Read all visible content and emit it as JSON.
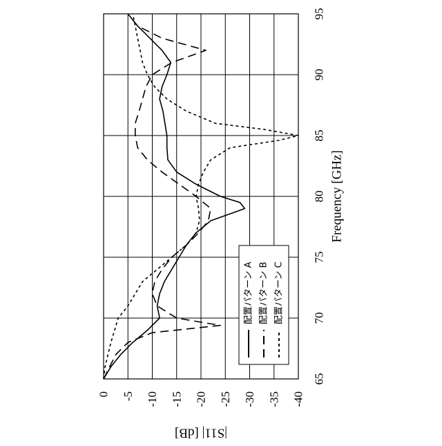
{
  "chart_data": {
    "type": "line",
    "orientation": "rotated-90-ccw",
    "xlabel": "Frequency [GHz]",
    "ylabel": "|S11| [dB]",
    "xlim": [
      65,
      95
    ],
    "ylim": [
      0,
      -40
    ],
    "x_ticks": [
      "65",
      "70",
      "75",
      "80",
      "85",
      "90",
      "95"
    ],
    "y_ticks": [
      "0",
      "-5",
      "-10",
      "-15",
      "-20",
      "-25",
      "-30",
      "-35",
      "-40"
    ],
    "grid": true,
    "legend_position": "lower-right",
    "series": [
      {
        "name": "配置パターン A",
        "style": "solid",
        "points": [
          [
            65,
            0
          ],
          [
            66,
            -1.5
          ],
          [
            67,
            -3.5
          ],
          [
            68,
            -6
          ],
          [
            69,
            -9
          ],
          [
            70,
            -11.5
          ],
          [
            71,
            -11
          ],
          [
            72,
            -11.5
          ],
          [
            73,
            -12.5
          ],
          [
            74,
            -14
          ],
          [
            75,
            -15.5
          ],
          [
            76,
            -17
          ],
          [
            77,
            -19
          ],
          [
            78,
            -22
          ],
          [
            79,
            -29
          ],
          [
            79.5,
            -28
          ],
          [
            80,
            -24
          ],
          [
            81,
            -19
          ],
          [
            82,
            -15
          ],
          [
            83,
            -13.2
          ],
          [
            84,
            -13
          ],
          [
            85,
            -13
          ],
          [
            86,
            -12.6
          ],
          [
            87,
            -12.2
          ],
          [
            88,
            -11.5
          ],
          [
            89,
            -12
          ],
          [
            90,
            -13
          ],
          [
            91,
            -13.8
          ],
          [
            92,
            -12
          ],
          [
            93,
            -9.5
          ],
          [
            94,
            -7
          ],
          [
            95,
            -5
          ]
        ]
      },
      {
        "name": "配置パターン B",
        "style": "dashed",
        "points": [
          [
            65,
            0
          ],
          [
            67,
            -2.5
          ],
          [
            68,
            -5
          ],
          [
            68.8,
            -10
          ],
          [
            69.4,
            -24
          ],
          [
            70,
            -15
          ],
          [
            71,
            -11
          ],
          [
            72,
            -10
          ],
          [
            73,
            -10.5
          ],
          [
            74,
            -12
          ],
          [
            75,
            -14
          ],
          [
            76,
            -17
          ],
          [
            77,
            -19.5
          ],
          [
            78,
            -21.5
          ],
          [
            79,
            -22
          ],
          [
            80,
            -19
          ],
          [
            81,
            -15.5
          ],
          [
            82,
            -12
          ],
          [
            83,
            -9
          ],
          [
            84,
            -7
          ],
          [
            85,
            -6.5
          ],
          [
            86,
            -6.5
          ],
          [
            87,
            -7.3
          ],
          [
            88,
            -8
          ],
          [
            89,
            -8.7
          ],
          [
            90,
            -10
          ],
          [
            91,
            -14
          ],
          [
            92,
            -21
          ],
          [
            93,
            -12
          ],
          [
            94,
            -7
          ],
          [
            95,
            -5
          ]
        ]
      },
      {
        "name": "配置パターン C",
        "style": "dotted",
        "points": [
          [
            65,
            0
          ],
          [
            66,
            -0.3
          ],
          [
            68,
            -1.5
          ],
          [
            70,
            -3
          ],
          [
            71,
            -5
          ],
          [
            72,
            -6.5
          ],
          [
            73,
            -8
          ],
          [
            74,
            -11
          ],
          [
            75,
            -14
          ],
          [
            76,
            -17
          ],
          [
            77,
            -19
          ],
          [
            78,
            -19.7
          ],
          [
            79,
            -19.5
          ],
          [
            80,
            -19
          ],
          [
            81,
            -19.5
          ],
          [
            82,
            -20.5
          ],
          [
            83,
            -22
          ],
          [
            84,
            -26
          ],
          [
            84.6,
            -36
          ],
          [
            85,
            -40
          ],
          [
            85.5,
            -33
          ],
          [
            86,
            -23
          ],
          [
            87,
            -17
          ],
          [
            88,
            -13
          ],
          [
            89,
            -10.5
          ],
          [
            90,
            -9
          ],
          [
            91,
            -8
          ],
          [
            92,
            -7.5
          ],
          [
            93,
            -7
          ],
          [
            94,
            -6.5
          ],
          [
            95,
            -6
          ]
        ]
      }
    ]
  }
}
